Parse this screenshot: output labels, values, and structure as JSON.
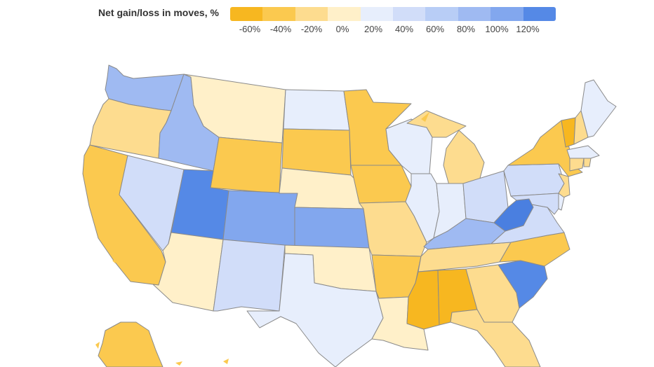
{
  "legend": {
    "title": "Net gain/loss in moves, %",
    "ticks": [
      "-60%",
      "-40%",
      "-20%",
      "0%",
      "20%",
      "40%",
      "60%",
      "80%",
      "100%",
      "120%"
    ],
    "colors": [
      "#f7b720",
      "#fbc94f",
      "#fddc8f",
      "#fff0c9",
      "#e7eefc",
      "#d1ddf9",
      "#b8cdf6",
      "#9fbaf2",
      "#82a7ee",
      "#5589e6"
    ]
  },
  "states": [
    {
      "id": "WA",
      "value": 90
    },
    {
      "id": "OR",
      "value": -20
    },
    {
      "id": "CA",
      "value": -40
    },
    {
      "id": "ID",
      "value": 90
    },
    {
      "id": "NV",
      "value": 40
    },
    {
      "id": "MT",
      "value": 10
    },
    {
      "id": "WY",
      "value": -40
    },
    {
      "id": "UT",
      "value": 120
    },
    {
      "id": "AZ",
      "value": 10
    },
    {
      "id": "CO",
      "value": 100
    },
    {
      "id": "NM",
      "value": 50
    },
    {
      "id": "ND",
      "value": 30
    },
    {
      "id": "SD",
      "value": -40
    },
    {
      "id": "NE",
      "value": 10
    },
    {
      "id": "KS",
      "value": 100
    },
    {
      "id": "OK",
      "value": 10
    },
    {
      "id": "TX",
      "value": 30
    },
    {
      "id": "MN",
      "value": -40
    },
    {
      "id": "IA",
      "value": -40
    },
    {
      "id": "MO",
      "value": -25
    },
    {
      "id": "AR",
      "value": -40
    },
    {
      "id": "LA",
      "value": 10
    },
    {
      "id": "WI",
      "value": 30
    },
    {
      "id": "IL",
      "value": 30
    },
    {
      "id": "MI",
      "value": -20
    },
    {
      "id": "IN",
      "value": 30
    },
    {
      "id": "OH",
      "value": 50
    },
    {
      "id": "KY",
      "value": 80
    },
    {
      "id": "TN",
      "value": -10
    },
    {
      "id": "MS",
      "value": -60
    },
    {
      "id": "AL",
      "value": -60
    },
    {
      "id": "GA",
      "value": -10
    },
    {
      "id": "FL",
      "value": -25
    },
    {
      "id": "SC",
      "value": 120
    },
    {
      "id": "NC",
      "value": -40
    },
    {
      "id": "VA",
      "value": 40
    },
    {
      "id": "WV",
      "value": 130
    },
    {
      "id": "PA",
      "value": 50
    },
    {
      "id": "NY",
      "value": -40
    },
    {
      "id": "VT",
      "value": -60
    },
    {
      "id": "NH",
      "value": -20
    },
    {
      "id": "ME",
      "value": 30
    },
    {
      "id": "MA",
      "value": 30
    },
    {
      "id": "CT",
      "value": -20
    },
    {
      "id": "RI",
      "value": -20
    },
    {
      "id": "NJ",
      "value": -10
    },
    {
      "id": "DE",
      "value": 30
    },
    {
      "id": "MD",
      "value": 40
    },
    {
      "id": "AK",
      "value": -40
    }
  ]
}
